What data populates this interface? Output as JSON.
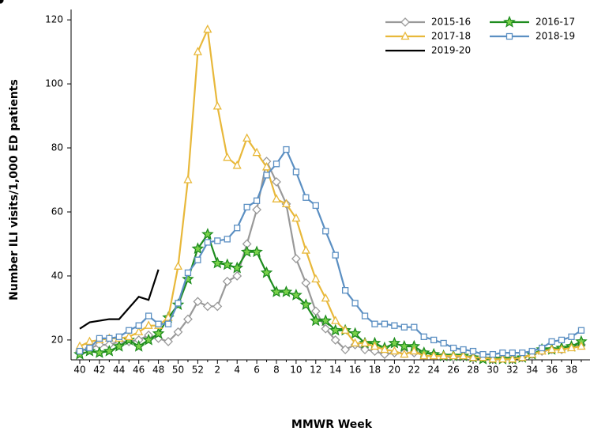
{
  "chart_data": {
    "type": "line",
    "xlabel": "MMWR Week",
    "ylabel": "Number ILI visits/1,000 ED patients",
    "categories": [
      "40",
      null,
      "42",
      null,
      "44",
      null,
      "46",
      null,
      "48",
      null,
      "50",
      null,
      "52",
      null,
      "2",
      null,
      "4",
      null,
      "6",
      null,
      "8",
      null,
      "10",
      null,
      "12",
      null,
      "14",
      null,
      "16",
      null,
      "18",
      null,
      "20",
      null,
      "22",
      null,
      "24",
      null,
      "26",
      null,
      "28",
      null,
      "30",
      null,
      "32",
      null,
      "34",
      null,
      "36",
      null,
      "38",
      null
    ],
    "ylim": [
      13.8,
      122.5
    ],
    "yticks": [
      20,
      40,
      60,
      80,
      100,
      120
    ],
    "grid": false,
    "legend": "top-right",
    "series": [
      {
        "name": "2015-16",
        "color": "#999999",
        "marker": "diamond",
        "values": [
          16.5,
          17.5,
          18.5,
          18.5,
          19.5,
          19.5,
          20,
          21.5,
          20.5,
          19.5,
          22.5,
          26.5,
          32,
          30.5,
          30.5,
          38.3,
          40,
          50,
          60.7,
          75.8,
          69.4,
          62.5,
          45.4,
          37.8,
          29,
          23.5,
          20,
          17,
          18.5,
          17,
          16.5,
          15.5,
          16,
          16,
          16,
          16,
          15.5,
          15,
          14.5,
          15,
          14.5,
          14.5,
          14.5,
          14.5,
          14.5,
          14.5,
          15.5,
          16.5,
          17,
          17,
          18,
          18.5
        ]
      },
      {
        "name": "2016-17",
        "color": "#1e8c1e",
        "marker": "star",
        "values": [
          15.5,
          16.5,
          16,
          16.5,
          18,
          20,
          18,
          20,
          22,
          27,
          31,
          39,
          48.5,
          53,
          44,
          43.5,
          42.5,
          47.5,
          47.5,
          41,
          35,
          35,
          34,
          31,
          26,
          26,
          23,
          23,
          22,
          19,
          19,
          17.5,
          19,
          18,
          18,
          16,
          15.5,
          15,
          15,
          15,
          14.5,
          14,
          14,
          14,
          14,
          14.5,
          15.5,
          17,
          17,
          17.5,
          18,
          19.5
        ]
      },
      {
        "name": "2017-18",
        "color": "#e8b83a",
        "marker": "triangle",
        "values": [
          18,
          19.5,
          20,
          20.5,
          20.5,
          21,
          22.5,
          24.5,
          24.5,
          27,
          43,
          70,
          110,
          117,
          93,
          77,
          74.5,
          83,
          78.5,
          74,
          64,
          62.5,
          58,
          48,
          39,
          33,
          26,
          23,
          19,
          19,
          18,
          17,
          16.5,
          15.5,
          16.5,
          15,
          15,
          15,
          15,
          15,
          14.5,
          14.5,
          14,
          14,
          14,
          14.5,
          15.5,
          16.5,
          17,
          17,
          17.5,
          18
        ]
      },
      {
        "name": "2018-19",
        "color": "#5b8fc2",
        "marker": "square",
        "values": [
          16.5,
          17.5,
          20.5,
          20.5,
          21,
          23,
          24.5,
          27.5,
          25,
          25,
          31.5,
          41,
          45,
          50.5,
          51,
          51.5,
          55,
          61.5,
          63.5,
          71.5,
          75,
          79.5,
          72.5,
          64.5,
          62,
          54,
          46.5,
          35.5,
          31.5,
          27.5,
          25,
          25,
          24.5,
          24,
          24,
          21,
          20,
          19,
          17.5,
          17,
          16.5,
          15.5,
          15.5,
          16,
          16,
          16,
          16.5,
          17.5,
          19.5,
          20,
          21,
          23
        ]
      },
      {
        "name": "2019-20",
        "color": "#000000",
        "marker": "circle",
        "values": [
          23.5,
          25.5,
          26,
          26.5,
          26.5,
          30,
          33.5,
          32.5,
          42,
          null,
          null,
          null,
          null,
          null,
          null,
          null,
          null,
          null,
          null,
          null,
          null,
          null,
          null,
          null,
          null,
          null,
          null,
          null,
          null,
          null,
          null,
          null,
          null,
          null,
          null,
          null,
          null,
          null,
          null,
          null,
          null,
          null,
          null,
          null,
          null,
          null,
          null,
          null,
          null,
          null,
          null,
          null
        ]
      }
    ]
  }
}
